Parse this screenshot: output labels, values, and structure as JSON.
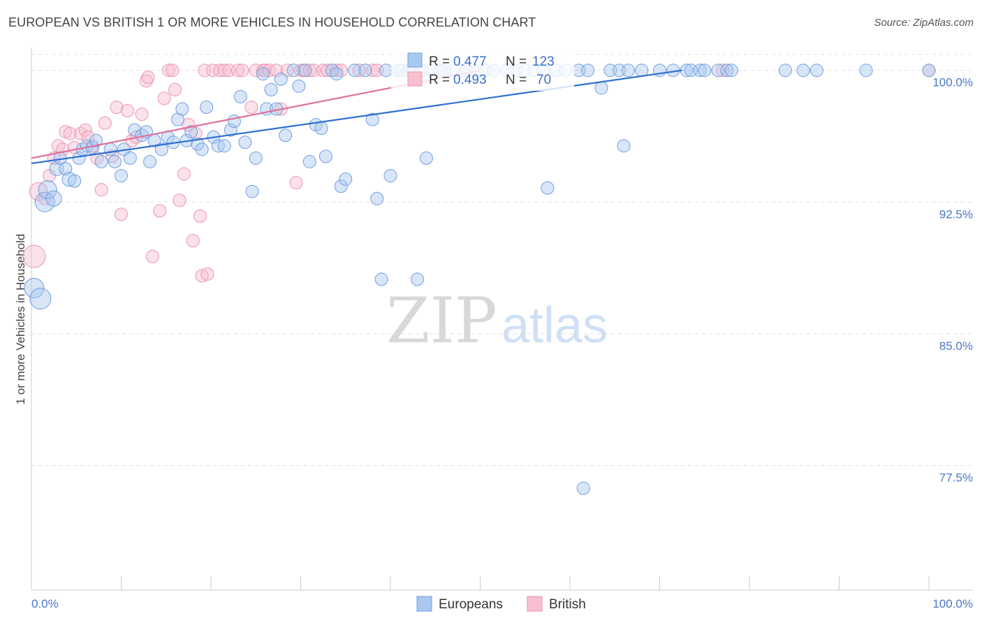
{
  "title": "EUROPEAN VS BRITISH 1 OR MORE VEHICLES IN HOUSEHOLD CORRELATION CHART",
  "source": "Source: ZipAtlas.com",
  "watermark": {
    "zip": "ZIP",
    "atlas": "atlas"
  },
  "colors": {
    "european_fill": "#a9c8f0",
    "european_stroke": "#6f9ee0",
    "european_line": "#2f6fd0",
    "british_fill": "#f7bfd0",
    "british_stroke": "#ec93b0",
    "british_line": "#e0709a",
    "tick_text": "#4a78c8",
    "grid": "#dddddd"
  },
  "stats": [
    {
      "r_label": "R =",
      "r_value": "0.477",
      "n_label": "N =",
      "n_value": "123"
    },
    {
      "r_label": "R =",
      "r_value": "0.493",
      "n_label": "N =",
      "n_value": "70"
    }
  ],
  "chart_data": {
    "type": "scatter",
    "title": "EUROPEAN VS BRITISH 1 OR MORE VEHICLES IN HOUSEHOLD CORRELATION CHART",
    "xlabel": "",
    "ylabel": "1 or more Vehicles in Household",
    "xlim": [
      0,
      100
    ],
    "ylim": [
      70.4,
      101.3
    ],
    "x_tick_labels": [
      "0.0%",
      "100.0%"
    ],
    "y_ticks": [
      100.0,
      92.5,
      85.0,
      77.5
    ],
    "y_tick_labels": [
      "100.0%",
      "92.5%",
      "85.0%",
      "77.5%"
    ],
    "legend_position": "bottom-center",
    "series": [
      {
        "name": "Europeans",
        "trend": {
          "x": [
            0,
            72.5
          ],
          "y": [
            94.7,
            100.0
          ]
        },
        "points": [
          [
            0.3,
            87.6,
            14
          ],
          [
            1.0,
            87.0,
            15
          ],
          [
            1.5,
            92.5,
            14
          ],
          [
            1.8,
            93.2,
            13
          ],
          [
            2.5,
            92.7,
            11
          ],
          [
            2.8,
            94.4,
            10
          ],
          [
            3.2,
            95.0,
            9
          ],
          [
            3.8,
            94.4,
            9
          ],
          [
            4.2,
            93.8,
            10
          ],
          [
            4.8,
            93.7,
            9
          ],
          [
            5.3,
            95.0,
            9
          ],
          [
            5.7,
            95.5,
            9
          ],
          [
            6.2,
            95.7,
            9
          ],
          [
            6.8,
            95.6,
            9
          ],
          [
            7.2,
            96.0,
            9
          ],
          [
            7.8,
            94.8,
            9
          ],
          [
            8.8,
            95.5,
            9
          ],
          [
            9.3,
            94.8,
            9
          ],
          [
            10.0,
            94.0,
            9
          ],
          [
            10.3,
            95.5,
            9
          ],
          [
            11.0,
            95.0,
            9
          ],
          [
            11.5,
            96.6,
            9
          ],
          [
            12.3,
            96.3,
            9
          ],
          [
            12.8,
            96.5,
            9
          ],
          [
            13.2,
            94.8,
            9
          ],
          [
            13.7,
            96.0,
            9
          ],
          [
            14.5,
            95.5,
            9
          ],
          [
            15.2,
            96.2,
            9
          ],
          [
            15.8,
            95.9,
            9
          ],
          [
            16.3,
            97.2,
            9
          ],
          [
            16.8,
            97.8,
            9
          ],
          [
            17.3,
            96.0,
            9
          ],
          [
            17.8,
            96.5,
            9
          ],
          [
            18.5,
            95.8,
            9
          ],
          [
            19.0,
            95.5,
            9
          ],
          [
            19.5,
            97.9,
            9
          ],
          [
            20.3,
            96.2,
            9
          ],
          [
            20.8,
            95.7,
            9
          ],
          [
            21.5,
            95.7,
            9
          ],
          [
            22.2,
            96.6,
            9
          ],
          [
            22.6,
            97.1,
            9
          ],
          [
            23.3,
            98.5,
            9
          ],
          [
            23.8,
            95.9,
            9
          ],
          [
            24.6,
            93.1,
            9
          ],
          [
            25.0,
            95.0,
            9
          ],
          [
            25.8,
            99.8,
            9
          ],
          [
            26.2,
            97.8,
            9
          ],
          [
            26.7,
            98.9,
            9
          ],
          [
            27.3,
            97.8,
            9
          ],
          [
            27.8,
            99.5,
            9
          ],
          [
            28.3,
            96.3,
            9
          ],
          [
            29.2,
            100.0,
            9
          ],
          [
            29.8,
            99.1,
            9
          ],
          [
            30.5,
            100.0,
            9
          ],
          [
            31.0,
            94.8,
            9
          ],
          [
            31.7,
            96.9,
            9
          ],
          [
            32.3,
            96.7,
            9
          ],
          [
            32.8,
            95.1,
            9
          ],
          [
            33.5,
            100.0,
            9
          ],
          [
            34.0,
            99.8,
            9
          ],
          [
            34.5,
            93.4,
            9
          ],
          [
            35.0,
            93.8,
            9
          ],
          [
            36.0,
            100.0,
            9
          ],
          [
            37.2,
            100.0,
            9
          ],
          [
            38.0,
            97.2,
            9
          ],
          [
            38.5,
            92.7,
            9
          ],
          [
            39.0,
            88.1,
            9
          ],
          [
            39.5,
            100.0,
            9
          ],
          [
            40.0,
            94.0,
            9
          ],
          [
            40.8,
            100.0,
            9
          ],
          [
            41.2,
            100.0,
            9
          ],
          [
            42.0,
            100.0,
            9
          ],
          [
            42.5,
            100.0,
            9
          ],
          [
            43.0,
            88.1,
            9
          ],
          [
            43.5,
            100.0,
            9
          ],
          [
            44.0,
            95.0,
            9
          ],
          [
            44.5,
            100.0,
            9
          ],
          [
            45.5,
            100.0,
            9
          ],
          [
            46.0,
            100.0,
            9
          ],
          [
            47.0,
            100.0,
            9
          ],
          [
            48.5,
            100.0,
            9
          ],
          [
            49.5,
            100.0,
            9
          ],
          [
            50.5,
            100.0,
            9
          ],
          [
            51.5,
            100.0,
            9
          ],
          [
            53.0,
            100.0,
            9
          ],
          [
            54.0,
            100.0,
            9
          ],
          [
            55.0,
            100.0,
            9
          ],
          [
            56.0,
            100.0,
            9
          ],
          [
            57.0,
            100.0,
            9
          ],
          [
            57.5,
            93.3,
            9
          ],
          [
            58.5,
            100.0,
            9
          ],
          [
            59.5,
            100.0,
            9
          ],
          [
            61.0,
            100.0,
            9
          ],
          [
            62.0,
            100.0,
            9
          ],
          [
            63.5,
            99.0,
            9
          ],
          [
            64.5,
            100.0,
            9
          ],
          [
            65.5,
            100.0,
            9
          ],
          [
            66.0,
            95.7,
            9
          ],
          [
            66.5,
            100.0,
            9
          ],
          [
            61.5,
            76.2,
            9
          ],
          [
            68.0,
            100.0,
            9
          ],
          [
            70.0,
            100.0,
            9
          ],
          [
            71.5,
            100.0,
            9
          ],
          [
            73.0,
            100.0,
            9
          ],
          [
            73.5,
            100.0,
            9
          ],
          [
            74.5,
            100.0,
            9
          ],
          [
            75.0,
            100.0,
            9
          ],
          [
            76.5,
            100.0,
            9
          ],
          [
            77.5,
            100.0,
            9
          ],
          [
            78.0,
            100.0,
            9
          ],
          [
            84.0,
            100.0,
            9
          ],
          [
            86.0,
            100.0,
            9
          ],
          [
            87.5,
            100.0,
            9
          ],
          [
            93.0,
            100.0,
            9
          ],
          [
            100.0,
            100.0,
            9
          ]
        ]
      },
      {
        "name": "British",
        "trend": {
          "x": [
            0,
            50
          ],
          "y": [
            95.0,
            100.0
          ]
        },
        "points": [
          [
            0.3,
            89.4,
            16
          ],
          [
            0.8,
            93.1,
            13
          ],
          [
            1.5,
            92.7,
            9
          ],
          [
            2.0,
            94.0,
            9
          ],
          [
            2.5,
            95.0,
            9
          ],
          [
            3.0,
            95.7,
            9
          ],
          [
            3.5,
            95.5,
            9
          ],
          [
            3.8,
            96.5,
            9
          ],
          [
            4.3,
            96.4,
            9
          ],
          [
            4.8,
            95.6,
            9
          ],
          [
            5.5,
            96.4,
            9
          ],
          [
            6.0,
            96.6,
            9
          ],
          [
            6.3,
            96.2,
            9
          ],
          [
            6.8,
            95.7,
            9
          ],
          [
            7.3,
            95.0,
            9
          ],
          [
            7.8,
            93.2,
            9
          ],
          [
            8.2,
            97.0,
            9
          ],
          [
            9.0,
            95.1,
            9
          ],
          [
            9.5,
            97.9,
            9
          ],
          [
            10.0,
            91.8,
            9
          ],
          [
            10.7,
            97.7,
            9
          ],
          [
            11.2,
            96.0,
            9
          ],
          [
            11.7,
            96.2,
            9
          ],
          [
            12.3,
            97.5,
            9
          ],
          [
            12.8,
            99.4,
            9
          ],
          [
            13.0,
            99.6,
            9
          ],
          [
            13.5,
            89.4,
            9
          ],
          [
            14.3,
            92.0,
            9
          ],
          [
            14.8,
            98.4,
            9
          ],
          [
            15.3,
            100.0,
            9
          ],
          [
            15.7,
            100.0,
            9
          ],
          [
            16.0,
            98.9,
            9
          ],
          [
            16.5,
            92.6,
            9
          ],
          [
            17.0,
            94.1,
            9
          ],
          [
            17.5,
            96.9,
            9
          ],
          [
            18.0,
            90.3,
            9
          ],
          [
            18.3,
            96.4,
            9
          ],
          [
            18.8,
            91.7,
            9
          ],
          [
            19.0,
            88.3,
            9
          ],
          [
            19.3,
            100.0,
            9
          ],
          [
            19.6,
            88.4,
            9
          ],
          [
            20.2,
            100.0,
            9
          ],
          [
            21.0,
            100.0,
            9
          ],
          [
            21.5,
            100.0,
            9
          ],
          [
            22.0,
            100.0,
            9
          ],
          [
            23.0,
            100.0,
            9
          ],
          [
            23.5,
            100.0,
            9
          ],
          [
            24.5,
            97.9,
            9
          ],
          [
            25.0,
            100.0,
            9
          ],
          [
            25.8,
            100.0,
            9
          ],
          [
            26.0,
            100.0,
            9
          ],
          [
            26.5,
            100.0,
            9
          ],
          [
            27.3,
            100.0,
            9
          ],
          [
            27.8,
            97.8,
            9
          ],
          [
            28.5,
            100.0,
            9
          ],
          [
            29.5,
            93.6,
            9
          ],
          [
            30.0,
            100.0,
            9
          ],
          [
            30.3,
            100.0,
            9
          ],
          [
            31.0,
            100.0,
            9
          ],
          [
            31.5,
            100.0,
            9
          ],
          [
            32.5,
            100.0,
            9
          ],
          [
            33.0,
            100.0,
            9
          ],
          [
            34.0,
            100.0,
            9
          ],
          [
            34.5,
            100.0,
            9
          ],
          [
            36.5,
            100.0,
            9
          ],
          [
            38.0,
            100.0,
            9
          ],
          [
            38.5,
            100.0,
            9
          ],
          [
            42.0,
            100.0,
            9
          ],
          [
            48.0,
            100.0,
            9
          ],
          [
            77.0,
            100.0,
            9
          ],
          [
            100.0,
            100.0,
            9
          ]
        ]
      }
    ]
  }
}
